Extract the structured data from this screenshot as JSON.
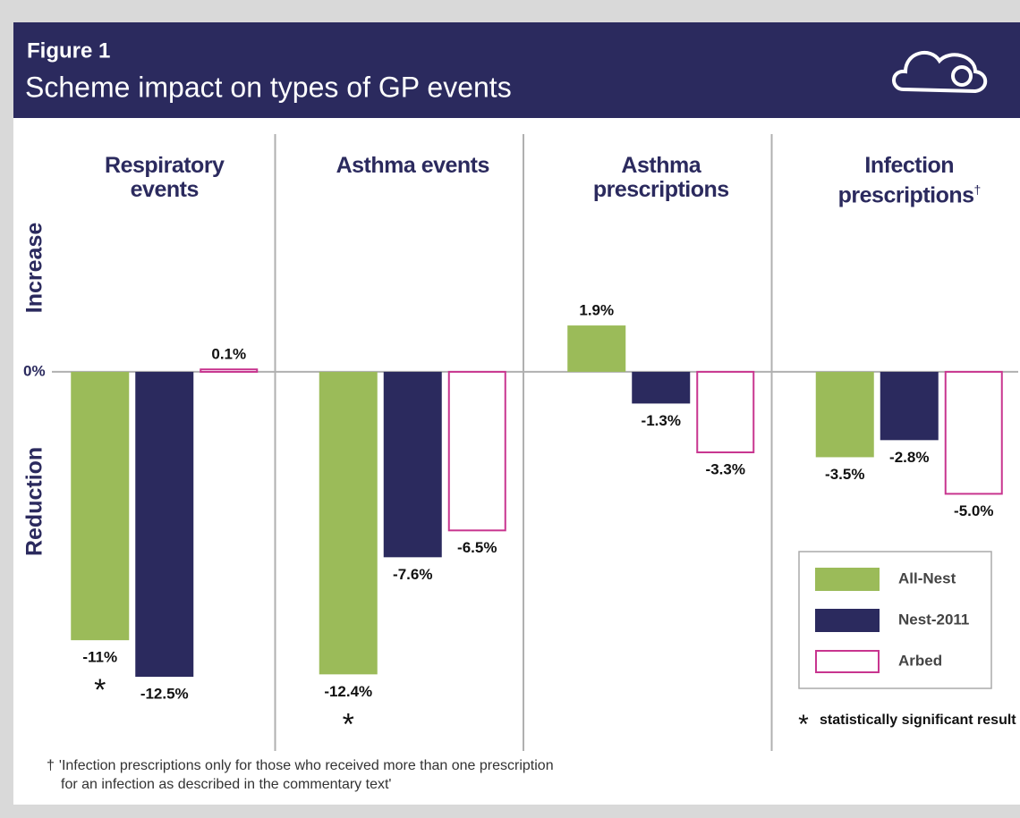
{
  "chart_data": {
    "type": "bar",
    "figure_label": "Figure 1",
    "title": "Scheme impact on types of GP events",
    "categories": [
      "Respiratory events",
      "Asthma events",
      "Asthma prescriptions",
      "Infection prescriptions"
    ],
    "category_marks": [
      null,
      null,
      null,
      "†"
    ],
    "series": [
      {
        "name": "All-Nest",
        "color": "#9bbb59",
        "values": [
          -11,
          -12.4,
          1.9,
          -3.5
        ],
        "value_labels": [
          "-11%",
          "-12.4%",
          "1.9%",
          "-3.5%"
        ],
        "significance": [
          "*",
          "*",
          null,
          null
        ]
      },
      {
        "name": "Nest-2011",
        "color": "#2b2a5e",
        "values": [
          -12.5,
          -7.6,
          -1.3,
          -2.8
        ],
        "value_labels": [
          "-12.5%",
          "-7.6%",
          "-1.3%",
          "-2.8%"
        ]
      },
      {
        "name": "Arbed",
        "color": "#c8358f",
        "outline": true,
        "values": [
          0.1,
          -6.5,
          -3.3,
          -5.0
        ],
        "value_labels": [
          "0.1%",
          "-6.5%",
          "-3.3%",
          "-5.0%"
        ]
      }
    ],
    "ylim": [
      -14,
      10
    ],
    "yticks": [
      {
        "value": 0,
        "label": "0%"
      }
    ],
    "ylabel_positive": "Increase",
    "ylabel_negative": "Reduction",
    "legend": "lower right",
    "note": {
      "marker": "*",
      "text": "statistically significant result"
    },
    "footnote": {
      "marker": "†",
      "text": "'Infection prescriptions only for those who received more than one prescription for an infection as described in the commentary text'"
    }
  }
}
